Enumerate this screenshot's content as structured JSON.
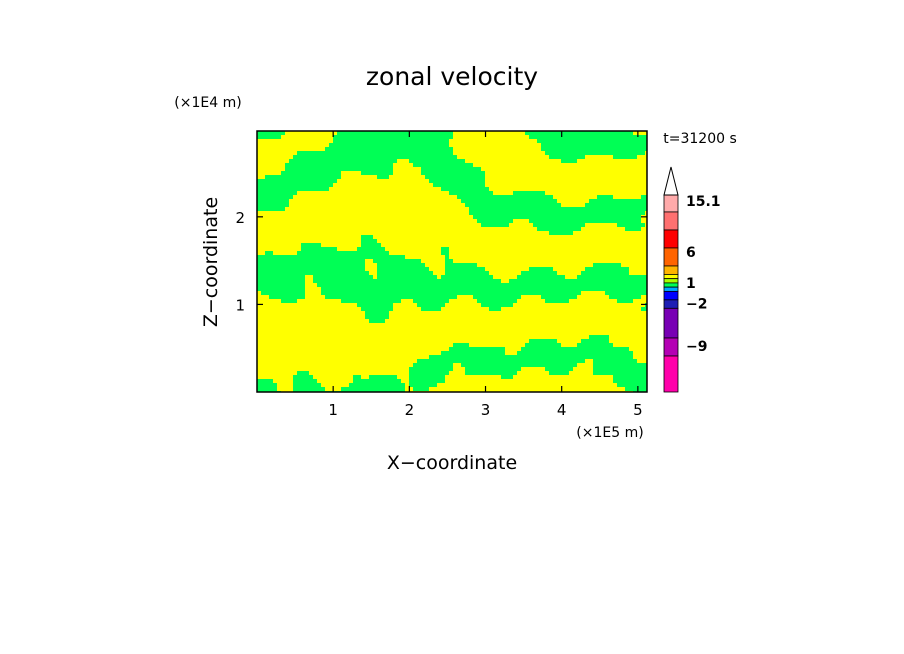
{
  "chart_data": {
    "type": "heatmap",
    "title": "zonal velocity",
    "xlabel": "X−coordinate",
    "ylabel": "Z−coordinate",
    "x_unit": "(×1E5 m)",
    "y_unit": "(×1E4 m)",
    "time_label": "t=31200 s",
    "xlim": [
      0,
      5.12
    ],
    "ylim": [
      0,
      2.98
    ],
    "x_ticks": [
      {
        "value": 1,
        "label": "1"
      },
      {
        "value": 2,
        "label": "2"
      },
      {
        "value": 3,
        "label": "3"
      },
      {
        "value": 4,
        "label": "4"
      },
      {
        "value": 5,
        "label": "5"
      }
    ],
    "y_ticks": [
      {
        "value": 1,
        "label": "1"
      },
      {
        "value": 2,
        "label": "2"
      }
    ],
    "field": {
      "description_visible": "banded pattern of two colour classes",
      "colors": [
        "#ffff00",
        "#00ff55"
      ]
    },
    "colorbar": {
      "extend_top": "triangle",
      "levels": [
        {
          "color": "#ff00aa"
        },
        {
          "color": "#b400b4"
        },
        {
          "color": "#7800b4"
        },
        {
          "color": "#1e1eb4"
        },
        {
          "color": "#0000ff"
        },
        {
          "color": "#00aaff"
        },
        {
          "color": "#00ff55"
        },
        {
          "color": "#aaff00"
        },
        {
          "color": "#ffff00"
        },
        {
          "color": "#ffb400"
        },
        {
          "color": "#ff6400"
        },
        {
          "color": "#ff0000"
        },
        {
          "color": "#ff7070"
        },
        {
          "color": "#ffaaaa"
        }
      ],
      "labels": [
        "15.1",
        "6",
        "1",
        "−2",
        "−9"
      ]
    }
  }
}
